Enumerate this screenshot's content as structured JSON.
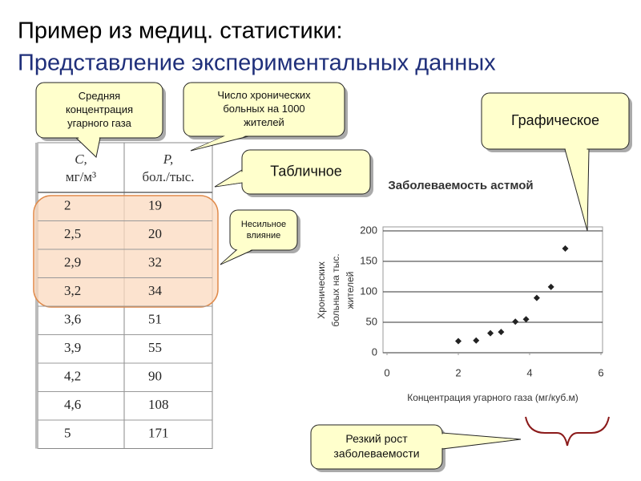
{
  "header": {
    "title": "Пример из медиц. статистики:",
    "subtitle": "Представление экспериментальных данных"
  },
  "table": {
    "headers": [
      [
        "C,",
        "мг/м³"
      ],
      [
        "P,",
        "бол./тыс."
      ]
    ],
    "rows": [
      [
        "2",
        19
      ],
      [
        "2,5",
        20
      ],
      [
        "2,9",
        32
      ],
      [
        "3,2",
        34
      ],
      [
        "3,6",
        51
      ],
      [
        "3,9",
        55
      ],
      [
        "4,2",
        90
      ],
      [
        "4,6",
        108
      ],
      [
        "5",
        171
      ]
    ]
  },
  "callouts": [
    {
      "lines": [
        "Средняя",
        "концентрация",
        "угарного газа"
      ]
    },
    {
      "lines": [
        "Число хронических",
        "больных на 1000",
        "жителей"
      ]
    },
    {
      "lines": [
        "Табличное"
      ]
    },
    {
      "lines": [
        "Несильное",
        "влияние"
      ]
    },
    {
      "lines": [
        "Графическое"
      ]
    },
    {
      "lines": [
        "Резкий рост",
        "заболеваемости"
      ]
    }
  ],
  "chart_data": {
    "type": "scatter",
    "title": "Заболеваемость астмой",
    "x_label": "Концентрация угарного газа (мг/куб.м)",
    "y_label": [
      "Хронических",
      "больных на тыс.",
      "жителей"
    ],
    "x": [
      2,
      2.5,
      2.9,
      3.2,
      3.6,
      3.9,
      4.2,
      4.6,
      5
    ],
    "values": [
      19,
      20,
      32,
      34,
      51,
      55,
      90,
      108,
      171
    ],
    "color": "#222222",
    "xlim": [
      0,
      6
    ],
    "xticks": [
      0,
      2,
      4,
      6
    ],
    "ylim": [
      0,
      200
    ],
    "yticks": [
      0,
      50,
      100,
      150,
      200
    ],
    "grid": true
  }
}
